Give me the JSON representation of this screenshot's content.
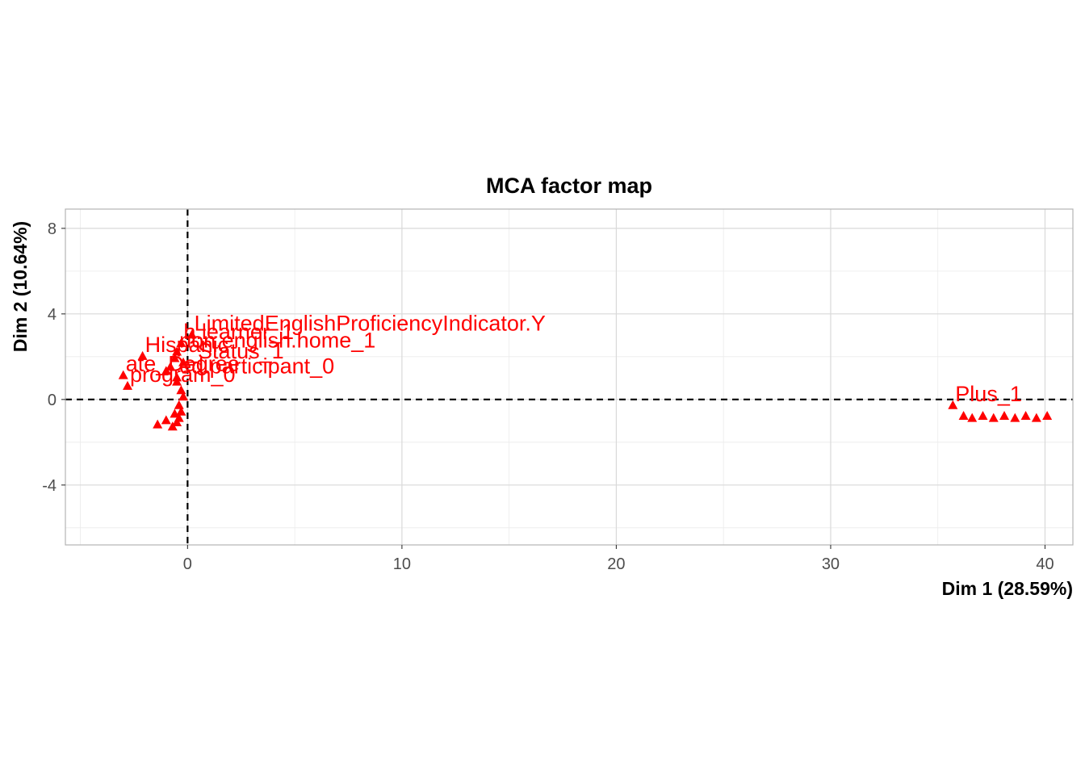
{
  "chart_data": {
    "type": "scatter",
    "title": "MCA factor map",
    "xlabel": "Dim 1 (28.59%)",
    "ylabel": "Dim 2 (10.64%)",
    "xlim": [
      -5.7,
      41.3
    ],
    "ylim": [
      -6.8,
      8.9
    ],
    "x_ticks": [
      0,
      10,
      20,
      30,
      40
    ],
    "x_tick_labels": [
      "0",
      "10",
      "20",
      "30",
      "40"
    ],
    "y_ticks": [
      -4,
      0,
      4,
      8
    ],
    "y_tick_labels": [
      "-4",
      "0",
      "4",
      "8"
    ],
    "grid": true,
    "reference_lines": {
      "x": 0,
      "y": 0,
      "style": "dashed"
    },
    "marker": "triangle",
    "point_color": "#ff0000",
    "points": [
      {
        "label": "LimitedEnglishProficiencyIndicator.Y",
        "x": 0.2,
        "y": 3.0
      },
      {
        "label": "non.english.home_1",
        "x": -0.5,
        "y": 2.2
      },
      {
        "label": "h.learner_1",
        "x": -0.3,
        "y": 2.6
      },
      {
        "label": "Hispanic",
        "x": -2.1,
        "y": 2.0
      },
      {
        "label": "_Status_1",
        "x": -0.2,
        "y": 1.7
      },
      {
        "label": "ed.participant_0",
        "x": -0.5,
        "y": 1.0
      },
      {
        "label": "ate_Degree",
        "x": -3.0,
        "y": 1.1
      },
      {
        "label": "program_0",
        "x": -2.8,
        "y": 0.6
      },
      {
        "label": "",
        "x": -0.6,
        "y": 1.9
      },
      {
        "label": "",
        "x": -0.8,
        "y": 1.5
      },
      {
        "label": "",
        "x": -1.0,
        "y": 1.3
      },
      {
        "label": "",
        "x": -0.5,
        "y": 0.8
      },
      {
        "label": "",
        "x": -0.3,
        "y": 0.4
      },
      {
        "label": "",
        "x": -0.2,
        "y": 0.1
      },
      {
        "label": "",
        "x": -0.3,
        "y": -0.6
      },
      {
        "label": "",
        "x": -0.4,
        "y": -0.9
      },
      {
        "label": "",
        "x": -0.5,
        "y": -1.1
      },
      {
        "label": "",
        "x": -0.6,
        "y": -0.7
      },
      {
        "label": "",
        "x": -0.7,
        "y": -1.3
      },
      {
        "label": "",
        "x": -1.0,
        "y": -1.0
      },
      {
        "label": "",
        "x": -1.4,
        "y": -1.2
      },
      {
        "label": "",
        "x": -0.4,
        "y": -0.3
      },
      {
        "label": "Plus_1",
        "x": 35.7,
        "y": -0.3
      },
      {
        "label": "",
        "x": 36.2,
        "y": -0.8
      },
      {
        "label": "",
        "x": 36.6,
        "y": -0.9
      },
      {
        "label": "",
        "x": 37.1,
        "y": -0.8
      },
      {
        "label": "",
        "x": 37.6,
        "y": -0.9
      },
      {
        "label": "",
        "x": 38.1,
        "y": -0.8
      },
      {
        "label": "",
        "x": 38.6,
        "y": -0.9
      },
      {
        "label": "",
        "x": 39.1,
        "y": -0.8
      },
      {
        "label": "",
        "x": 39.6,
        "y": -0.9
      },
      {
        "label": "",
        "x": 40.1,
        "y": -0.8
      }
    ]
  }
}
